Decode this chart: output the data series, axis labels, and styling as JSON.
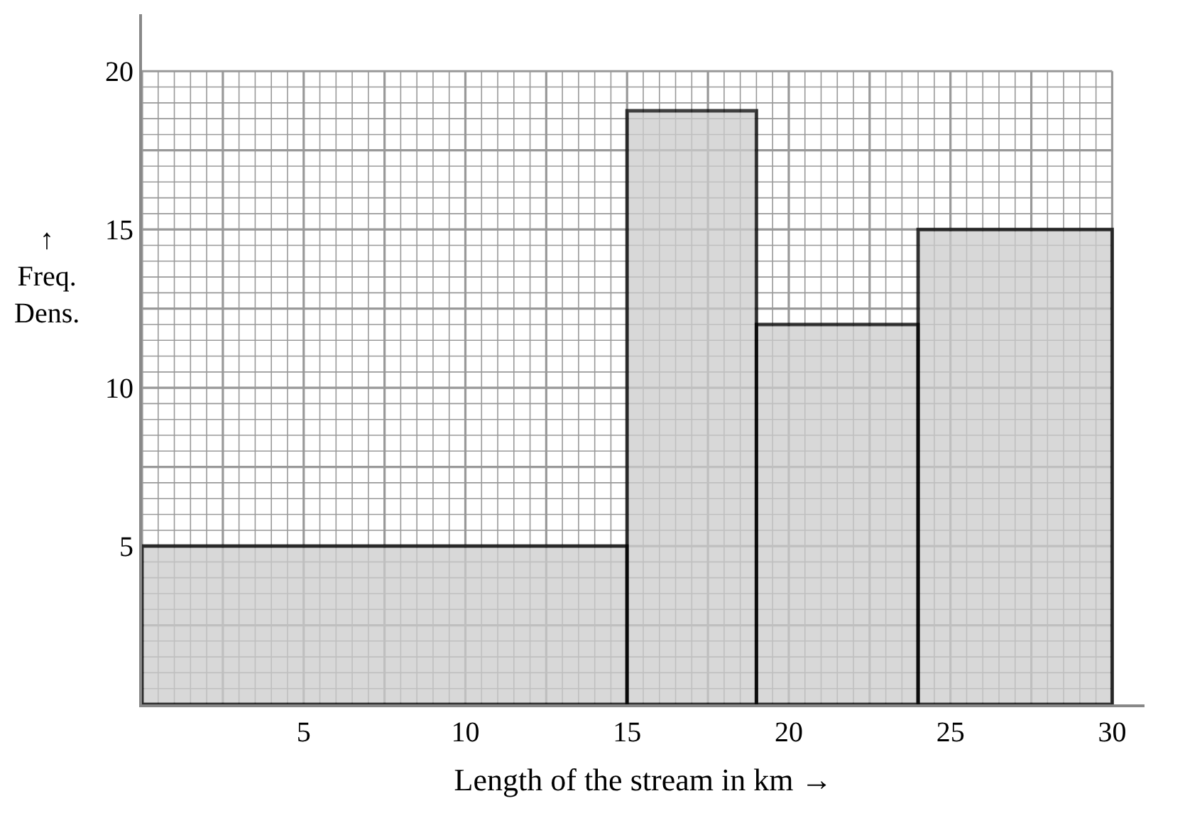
{
  "chart_data": {
    "type": "histogram",
    "xlabel": "Length of the stream in km →",
    "ylabel": "↑\nFreq.\nDens.",
    "bins": [
      0,
      15,
      19,
      24,
      30
    ],
    "values": [
      5,
      18.75,
      12,
      15
    ],
    "color": "#cccccc",
    "xlim": [
      0,
      31
    ],
    "ylim": [
      0,
      21.8
    ],
    "xticks": [
      5,
      10,
      15,
      20,
      25,
      30
    ],
    "yticks": [
      5,
      10,
      15,
      20
    ],
    "grid": true
  }
}
